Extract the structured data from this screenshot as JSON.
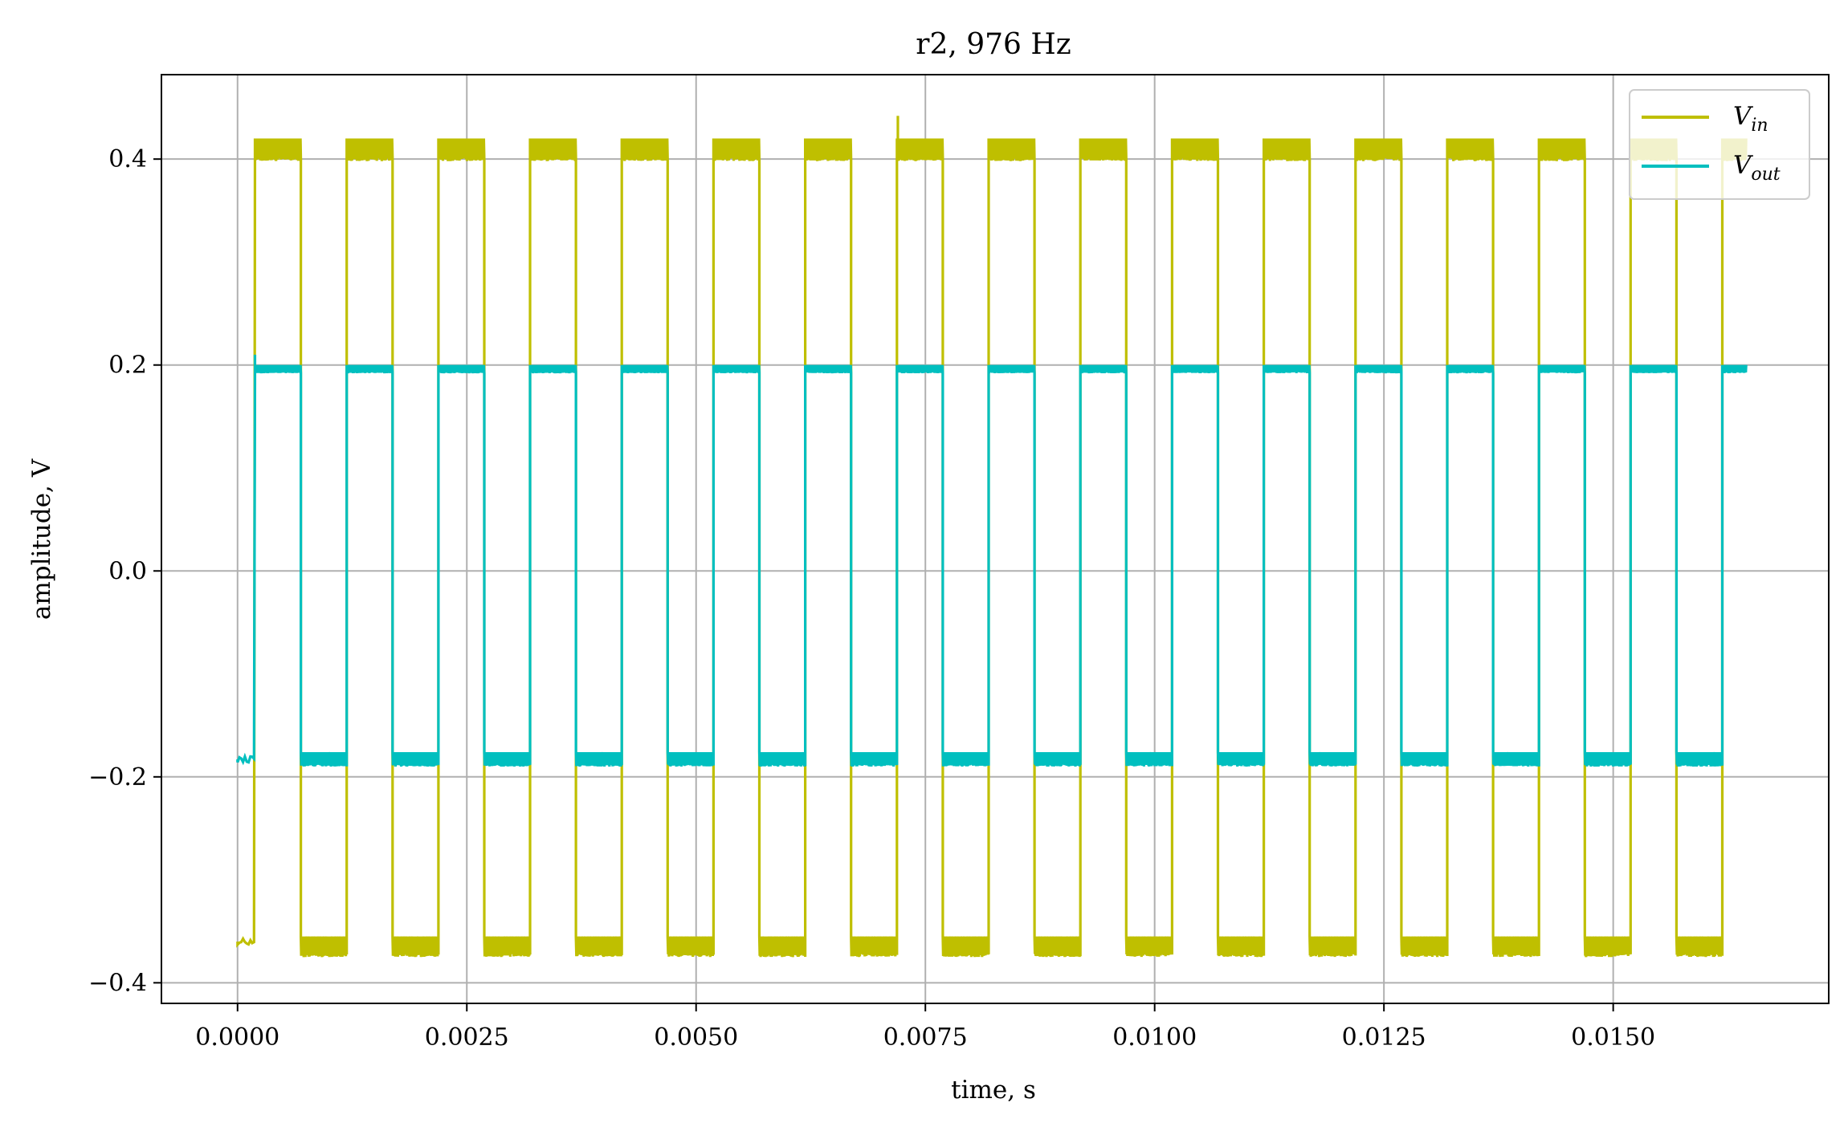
{
  "chart_data": {
    "type": "line",
    "title": "r2, 976 Hz",
    "xlabel": "time, s",
    "ylabel": "amplitude, V",
    "xlim": [
      -0.00083,
      0.01735
    ],
    "ylim": [
      -0.42,
      0.482
    ],
    "grid": true,
    "legend_position": "top-right",
    "x_ticks": [
      0.0,
      0.0025,
      0.005,
      0.0075,
      0.01,
      0.0125,
      0.015
    ],
    "x_tick_labels": [
      "0.0000",
      "0.0025",
      "0.0050",
      "0.0075",
      "0.0100",
      "0.0125",
      "0.0150"
    ],
    "y_ticks": [
      -0.4,
      -0.2,
      0.0,
      0.2,
      0.4
    ],
    "y_tick_labels": [
      "−0.4",
      "−0.2",
      "0.0",
      "0.2",
      "0.4"
    ],
    "period": 0.001,
    "t_end": 0.01645,
    "series": [
      {
        "name_main": "V",
        "name_sub": "in",
        "color": "#bfbf00",
        "high": 0.42,
        "high_min": 0.398,
        "low": -0.375,
        "low_max": -0.355,
        "start": -0.36,
        "first_rise": 0.00019,
        "duty": 0.5,
        "spike": {
          "x": 0.0072,
          "y": 0.442
        }
      },
      {
        "name_main": "V",
        "name_sub": "out",
        "color": "#00bfbf",
        "high": 0.2,
        "high_min": 0.192,
        "low": -0.19,
        "low_max": -0.176,
        "start": -0.183,
        "first_rise": 0.00019,
        "duty": 0.5,
        "spike": {
          "x": 0.00019,
          "y": 0.21
        }
      }
    ]
  }
}
